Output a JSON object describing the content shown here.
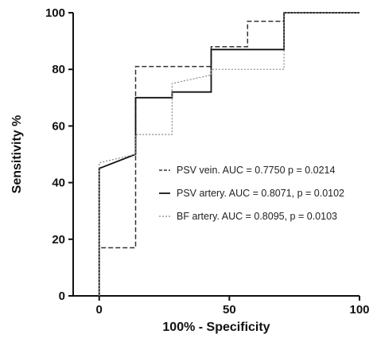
{
  "chart_data": {
    "type": "line",
    "step": true,
    "xlabel": "100% - Specificity",
    "ylabel": "Sensitivity %",
    "xlim": [
      -10,
      100
    ],
    "ylim": [
      0,
      100
    ],
    "x_ticks": [
      0,
      50,
      100
    ],
    "y_ticks": [
      0,
      20,
      40,
      60,
      80,
      100
    ],
    "grid": false,
    "legend_position": "center-right",
    "series": [
      {
        "name": "PSV vein. AUC = 0.7750 p = 0.0214",
        "style": "dashed",
        "color": "#333333",
        "x": [
          0,
          0,
          14,
          14,
          43,
          43,
          57,
          57,
          71,
          71,
          100
        ],
        "y": [
          0,
          17,
          17,
          81,
          81,
          88,
          88,
          97,
          97,
          100,
          100
        ]
      },
      {
        "name": "PSV artery. AUC = 0.8071, p = 0.0102",
        "style": "solid",
        "color": "#111111",
        "x": [
          0,
          0,
          14,
          14,
          28,
          28,
          43,
          43,
          71,
          71,
          100
        ],
        "y": [
          0,
          45,
          50,
          70,
          70,
          72,
          72,
          87,
          87,
          100,
          100
        ]
      },
      {
        "name": "BF artery. AUC = 0.8095, p = 0.0103",
        "style": "dotted",
        "color": "#888888",
        "x": [
          0,
          0,
          14,
          14,
          28,
          28,
          43,
          43,
          71,
          71,
          100
        ],
        "y": [
          0,
          47,
          50,
          57,
          57,
          75,
          78,
          80,
          80,
          100,
          100
        ]
      }
    ]
  }
}
